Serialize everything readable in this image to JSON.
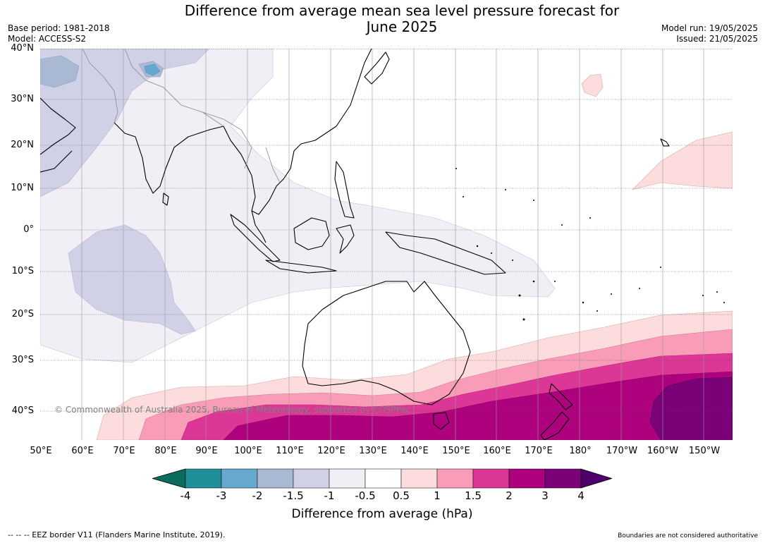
{
  "title": {
    "line1": "Difference from average mean sea level pressure forecast for",
    "line2": "June 2025"
  },
  "meta_left": {
    "base_period": "Base period: 1981-2018",
    "model": "Model: ACCESS-S2"
  },
  "meta_right": {
    "model_run": "Model run: 19/05/2025",
    "issued": "Issued: 21/05/2025"
  },
  "lat_labels": [
    "40°N",
    "30°N",
    "20°N",
    "10°N",
    "0°",
    "10°S",
    "20°S",
    "30°S",
    "40°S"
  ],
  "lon_labels": [
    "50°E",
    "60°E",
    "70°E",
    "80°E",
    "90°E",
    "100°E",
    "110°E",
    "120°E",
    "130°E",
    "140°E",
    "150°E",
    "160°E",
    "170°E",
    "180°",
    "170°W",
    "160°W",
    "150°W"
  ],
  "copyright": "© Commonwealth of Australia 2025, Bureau of Meteorology, supported by COSPPac",
  "colorbar": {
    "ticks": [
      "-4",
      "-3",
      "-2",
      "-1.5",
      "-1",
      "-0.5",
      "0.5",
      "1",
      "1.5",
      "2",
      "3",
      "4"
    ],
    "colors": {
      "below_min": "#0b6b5e",
      "b1": "#1e9099",
      "b2": "#66a9cf",
      "b3": "#a9b9d3",
      "b4": "#d0d1e6",
      "b5": "#f1eef6",
      "b6": "#ffffff",
      "b7": "#fcdcdc",
      "b8": "#f89cb8",
      "b9": "#dc3797",
      "b10": "#ae017e",
      "b11": "#7a0177",
      "above_max": "#4d006b"
    },
    "title": "Difference from average (hPa)"
  },
  "footer": {
    "eez": "--  --  -- EEZ border V11 (Flanders Marine Institute, 2019).",
    "boundaries": "Boundaries are not considered authoritative"
  }
}
